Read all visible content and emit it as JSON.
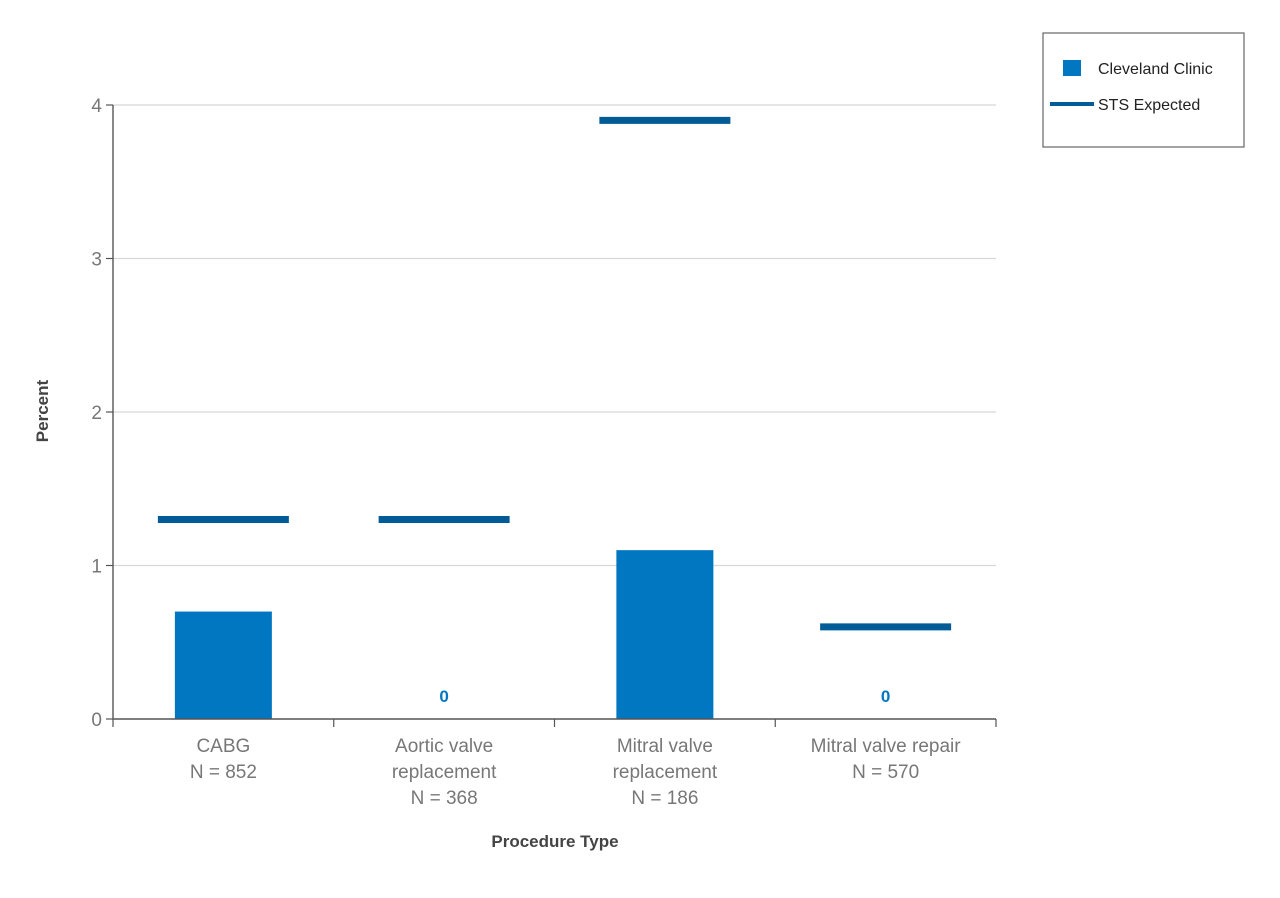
{
  "chart_data": {
    "type": "bar",
    "categories": [
      [
        "CABG",
        "N = 852"
      ],
      [
        "Aortic valve",
        "replacement",
        "N = 368"
      ],
      [
        "Mitral valve",
        "replacement",
        "N = 186"
      ],
      [
        "Mitral valve repair",
        "N = 570"
      ]
    ],
    "series": [
      {
        "name": "Cleveland Clinic",
        "kind": "bar",
        "values": [
          0.7,
          0,
          1.1,
          0
        ]
      },
      {
        "name": "STS Expected",
        "kind": "line-marker",
        "values": [
          1.3,
          1.3,
          3.9,
          0.6
        ]
      }
    ],
    "zero_labels": [
      "0",
      "0"
    ],
    "xlabel": "Procedure Type",
    "ylabel": "Percent",
    "ylim": [
      0,
      4
    ],
    "yticks": [
      0,
      1,
      2,
      3,
      4
    ],
    "grid": true,
    "legend": "top-right",
    "colors": {
      "bar": "#0077c0",
      "line": "#005b96",
      "grid": "#d8d8d8",
      "axis": "#555555"
    }
  }
}
